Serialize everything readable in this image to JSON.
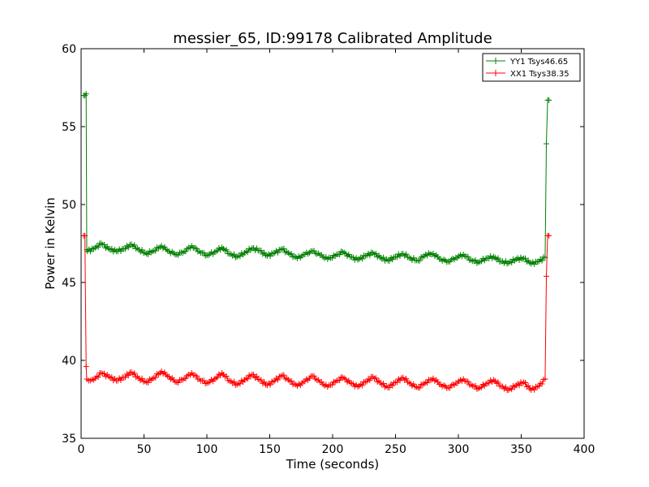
{
  "chart_data": {
    "type": "line",
    "title": "messier_65, ID:99178 Calibrated Amplitude",
    "xlabel": "Time (seconds)",
    "ylabel": "Power in Kelvin",
    "xlim": [
      0,
      400
    ],
    "ylim": [
      35,
      60
    ],
    "xticks": [
      0,
      50,
      100,
      150,
      200,
      250,
      300,
      350,
      400
    ],
    "yticks": [
      35,
      40,
      45,
      50,
      55,
      60
    ],
    "grid": false,
    "legend_position": "top-right",
    "series": [
      {
        "name": "YY1 Tsys46.65",
        "color": "#008000",
        "marker": "+",
        "points": [
          [
            2,
            57.0
          ],
          [
            3,
            57.0
          ],
          [
            4,
            57.1
          ],
          [
            4.5,
            47.1
          ],
          [
            5,
            47.0
          ],
          [
            10,
            47.15
          ],
          [
            16,
            47.5
          ],
          [
            22,
            47.15
          ],
          [
            28,
            47.0
          ],
          [
            34,
            47.15
          ],
          [
            40,
            47.45
          ],
          [
            46,
            47.1
          ],
          [
            52,
            46.85
          ],
          [
            58,
            47.05
          ],
          [
            64,
            47.35
          ],
          [
            70,
            47.0
          ],
          [
            76,
            46.8
          ],
          [
            82,
            47.0
          ],
          [
            88,
            47.35
          ],
          [
            94,
            47.0
          ],
          [
            100,
            46.75
          ],
          [
            106,
            46.95
          ],
          [
            112,
            47.25
          ],
          [
            118,
            46.85
          ],
          [
            124,
            46.65
          ],
          [
            130,
            46.9
          ],
          [
            136,
            47.2
          ],
          [
            142,
            47.05
          ],
          [
            148,
            46.7
          ],
          [
            154,
            46.9
          ],
          [
            160,
            47.15
          ],
          [
            166,
            46.8
          ],
          [
            172,
            46.55
          ],
          [
            178,
            46.8
          ],
          [
            184,
            47.0
          ],
          [
            190,
            46.75
          ],
          [
            196,
            46.5
          ],
          [
            202,
            46.7
          ],
          [
            208,
            46.95
          ],
          [
            214,
            46.65
          ],
          [
            220,
            46.45
          ],
          [
            226,
            46.7
          ],
          [
            232,
            46.9
          ],
          [
            238,
            46.6
          ],
          [
            244,
            46.4
          ],
          [
            250,
            46.65
          ],
          [
            256,
            46.85
          ],
          [
            262,
            46.55
          ],
          [
            268,
            46.4
          ],
          [
            274,
            46.8
          ],
          [
            280,
            46.85
          ],
          [
            286,
            46.5
          ],
          [
            292,
            46.35
          ],
          [
            298,
            46.6
          ],
          [
            304,
            46.8
          ],
          [
            310,
            46.45
          ],
          [
            316,
            46.3
          ],
          [
            322,
            46.55
          ],
          [
            328,
            46.65
          ],
          [
            334,
            46.35
          ],
          [
            340,
            46.25
          ],
          [
            346,
            46.5
          ],
          [
            352,
            46.55
          ],
          [
            358,
            46.2
          ],
          [
            364,
            46.35
          ],
          [
            369,
            46.6
          ],
          [
            370,
            53.9
          ],
          [
            371,
            56.7
          ],
          [
            372,
            56.7
          ]
        ]
      },
      {
        "name": "XX1 Tsys38.35",
        "color": "#ff0000",
        "marker": "+",
        "points": [
          [
            2,
            48.0
          ],
          [
            3,
            48.0
          ],
          [
            4,
            39.6
          ],
          [
            4.5,
            38.8
          ],
          [
            6,
            38.7
          ],
          [
            10,
            38.75
          ],
          [
            16,
            39.2
          ],
          [
            22,
            38.95
          ],
          [
            28,
            38.7
          ],
          [
            34,
            38.9
          ],
          [
            40,
            39.25
          ],
          [
            46,
            38.85
          ],
          [
            52,
            38.6
          ],
          [
            58,
            38.9
          ],
          [
            64,
            39.3
          ],
          [
            70,
            38.95
          ],
          [
            76,
            38.6
          ],
          [
            82,
            38.85
          ],
          [
            88,
            39.2
          ],
          [
            94,
            38.8
          ],
          [
            100,
            38.55
          ],
          [
            106,
            38.8
          ],
          [
            112,
            39.2
          ],
          [
            118,
            38.7
          ],
          [
            124,
            38.45
          ],
          [
            130,
            38.75
          ],
          [
            136,
            39.1
          ],
          [
            142,
            38.75
          ],
          [
            148,
            38.4
          ],
          [
            154,
            38.7
          ],
          [
            160,
            39.05
          ],
          [
            166,
            38.65
          ],
          [
            172,
            38.35
          ],
          [
            178,
            38.65
          ],
          [
            184,
            39.0
          ],
          [
            190,
            38.6
          ],
          [
            196,
            38.3
          ],
          [
            202,
            38.6
          ],
          [
            208,
            38.9
          ],
          [
            214,
            38.55
          ],
          [
            220,
            38.3
          ],
          [
            226,
            38.6
          ],
          [
            232,
            38.95
          ],
          [
            238,
            38.55
          ],
          [
            244,
            38.25
          ],
          [
            250,
            38.6
          ],
          [
            256,
            38.9
          ],
          [
            262,
            38.5
          ],
          [
            268,
            38.25
          ],
          [
            274,
            38.6
          ],
          [
            280,
            38.85
          ],
          [
            286,
            38.45
          ],
          [
            292,
            38.25
          ],
          [
            298,
            38.55
          ],
          [
            304,
            38.8
          ],
          [
            310,
            38.45
          ],
          [
            316,
            38.2
          ],
          [
            322,
            38.5
          ],
          [
            328,
            38.75
          ],
          [
            334,
            38.35
          ],
          [
            340,
            38.1
          ],
          [
            346,
            38.4
          ],
          [
            352,
            38.6
          ],
          [
            358,
            38.1
          ],
          [
            364,
            38.35
          ],
          [
            369,
            38.8
          ],
          [
            370,
            45.4
          ],
          [
            371,
            48.0
          ],
          [
            372,
            48.0
          ]
        ]
      }
    ]
  }
}
